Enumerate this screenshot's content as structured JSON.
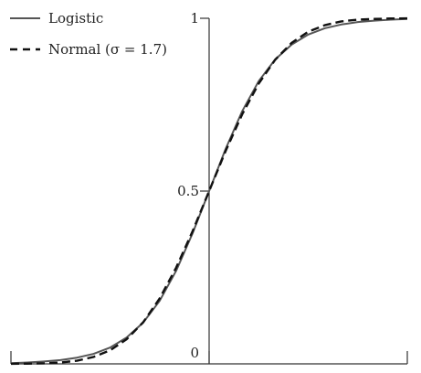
{
  "chart_data": {
    "type": "line",
    "title": "",
    "xlabel": "",
    "ylabel": "",
    "xlim": [
      -6,
      6
    ],
    "ylim": [
      0,
      1
    ],
    "x_ticks": [
      -6,
      0,
      6
    ],
    "y_ticks": [
      {
        "value": 0,
        "label": "0"
      },
      {
        "value": 0.5,
        "label": "0.5"
      },
      {
        "value": 1,
        "label": "1"
      }
    ],
    "grid": false,
    "legend_position": "top-left",
    "series": [
      {
        "name": "Logistic",
        "style": "solid",
        "color": "#555555",
        "x": [
          -6,
          -5.5,
          -5,
          -4.5,
          -4,
          -3.5,
          -3,
          -2.5,
          -2,
          -1.5,
          -1,
          -0.5,
          0,
          0.5,
          1,
          1.5,
          2,
          2.5,
          3,
          3.5,
          4,
          4.5,
          5,
          5.5,
          6
        ],
        "y": [
          0.002,
          0.004,
          0.007,
          0.011,
          0.018,
          0.029,
          0.047,
          0.076,
          0.119,
          0.182,
          0.269,
          0.378,
          0.5,
          0.622,
          0.731,
          0.818,
          0.881,
          0.924,
          0.953,
          0.971,
          0.982,
          0.989,
          0.993,
          0.996,
          0.998
        ]
      },
      {
        "name": "Normal (σ = 1.7)",
        "style": "dashed",
        "color": "#111111",
        "x": [
          -6,
          -5.5,
          -5,
          -4.5,
          -4,
          -3.5,
          -3,
          -2.5,
          -2,
          -1.5,
          -1,
          -0.5,
          0,
          0.5,
          1,
          1.5,
          2,
          2.5,
          3,
          3.5,
          4,
          4.5,
          5,
          5.5,
          6
        ],
        "y": [
          0.0002,
          0.0006,
          0.0016,
          0.004,
          0.009,
          0.02,
          0.039,
          0.071,
          0.12,
          0.189,
          0.278,
          0.384,
          0.5,
          0.616,
          0.722,
          0.811,
          0.88,
          0.929,
          0.961,
          0.98,
          0.991,
          0.996,
          0.998,
          0.9994,
          0.9998
        ]
      }
    ]
  }
}
